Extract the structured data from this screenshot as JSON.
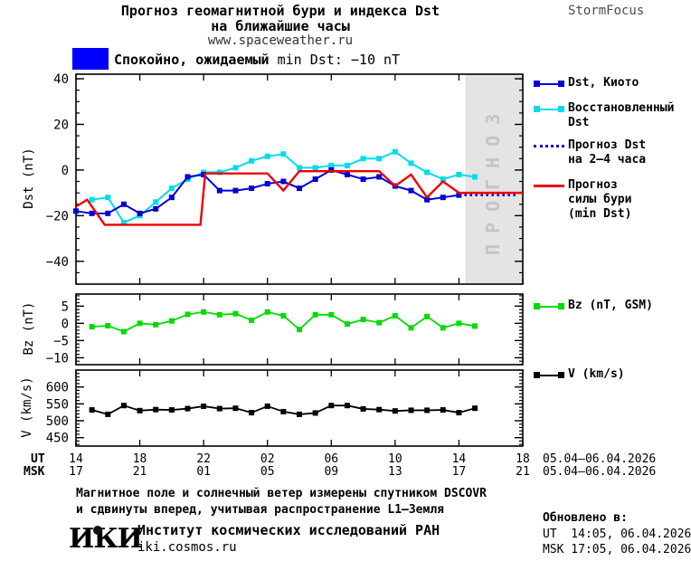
{
  "header": {
    "title_line1": "Прогноз геомагнитной бури и индекса Dst",
    "title_line2": "на ближайшие часы",
    "site": "www.spaceweather.ru",
    "brand": "StormFocus"
  },
  "banner": {
    "swatch_color": "#0000ff",
    "bold": "Спокойно, ожидаемый",
    "rest": " min Dst: −10 nT"
  },
  "chart_data": [
    {
      "id": "dst",
      "type": "line",
      "ylabel": "Dst (nT)",
      "ylim": [
        -50,
        42
      ],
      "xlim_hours": [
        0,
        28
      ],
      "yticks": {
        "values": [
          40,
          20,
          0,
          -20,
          -40
        ],
        "labels": [
          "40",
          "20",
          "0",
          "−20",
          "−40"
        ],
        "minor_step": 5
      },
      "xticks_hours": [
        0,
        4,
        8,
        12,
        16,
        20,
        24,
        28
      ],
      "grid": false,
      "legend_position": "right",
      "forecast_band": {
        "x_start_hour": 24.4,
        "fill": "#e4e4e4",
        "label": "ПРОГНОЗ",
        "text_color": "#c4c4c4"
      },
      "series": [
        {
          "name": "Восстановленный Dst",
          "color": "#00dcec",
          "lw": 2,
          "marker": true,
          "x": [
            1,
            2,
            3,
            4,
            5,
            6,
            7,
            8,
            9,
            10,
            11,
            12,
            13,
            14,
            15,
            16,
            17,
            18,
            19,
            20,
            21,
            22,
            23,
            24,
            25
          ],
          "y": [
            -13,
            -12,
            -23,
            -20,
            -14,
            -8,
            -4,
            -1,
            -1,
            1,
            4,
            6,
            7,
            1,
            1,
            2,
            2,
            5,
            5,
            8,
            3,
            -1,
            -4,
            -2,
            -3
          ]
        },
        {
          "name": "Dst, Киото",
          "color": "#0000d6",
          "lw": 2,
          "marker": true,
          "x": [
            0,
            1,
            2,
            3,
            4,
            5,
            6,
            7,
            8,
            9,
            10,
            11,
            12,
            13,
            14,
            15,
            16,
            17,
            18,
            19,
            20,
            21,
            22,
            23,
            24
          ],
          "y": [
            -18,
            -19,
            -19,
            -15,
            -19,
            -17,
            -12,
            -3,
            -2,
            -9,
            -9,
            -8,
            -6,
            -5,
            -8,
            -4,
            0,
            -2,
            -4,
            -3,
            -7,
            -9,
            -13,
            -12,
            -11
          ]
        },
        {
          "name": "Прогноз Dst на 2–4 часа",
          "color": "#0000cc",
          "lw": 2.5,
          "style": "dotted",
          "marker": false,
          "x": [
            24,
            27.6
          ],
          "y": [
            -11,
            -11
          ]
        },
        {
          "name": "Прогноз силы бури (min Dst)",
          "color": "#ee0000",
          "lw": 2.4,
          "marker": false,
          "x": [
            0,
            0.7,
            1.8,
            7.8,
            8.1,
            12,
            13,
            14,
            19,
            20,
            21,
            22,
            23,
            24,
            28
          ],
          "y": [
            -16,
            -13,
            -24,
            -24,
            -1.5,
            -1.5,
            -9,
            -0.5,
            -0.5,
            -7,
            -2,
            -12,
            -5,
            -10,
            -10
          ]
        }
      ]
    },
    {
      "id": "bz",
      "type": "line",
      "ylabel": "Bz (nT)",
      "ylim": [
        -12,
        8.5
      ],
      "xlim_hours": [
        0,
        28
      ],
      "yticks": {
        "values": [
          5,
          0,
          -5,
          -10
        ],
        "labels": [
          "5",
          "0",
          "−5",
          "−10"
        ],
        "minor_step": 1
      },
      "xticks_hours": [
        0,
        4,
        8,
        12,
        16,
        20,
        24,
        28
      ],
      "grid": false,
      "series": [
        {
          "name": "Bz (nT, GSM)",
          "color": "#00db00",
          "lw": 1.8,
          "marker": true,
          "x": [
            1,
            2,
            3,
            4,
            5,
            6,
            7,
            8,
            9,
            10,
            11,
            12,
            13,
            14,
            15,
            16,
            17,
            18,
            19,
            20,
            21,
            22,
            23,
            24,
            25
          ],
          "y": [
            -1,
            -0.7,
            -2.4,
            0,
            -0.4,
            0.7,
            2.6,
            3.3,
            2.5,
            2.8,
            0.9,
            3.3,
            2.2,
            -1.8,
            2.5,
            2.5,
            -0.2,
            1.1,
            0.2,
            2.2,
            -1.3,
            2.0,
            -1.3,
            0,
            -0.8
          ]
        }
      ]
    },
    {
      "id": "v",
      "type": "line",
      "ylabel": "V (km/s)",
      "ylim": [
        425,
        650
      ],
      "xlim_hours": [
        0,
        28
      ],
      "yticks": {
        "values": [
          600,
          550,
          500,
          450
        ],
        "labels": [
          "600",
          "550",
          "500",
          "450"
        ],
        "minor_step": 10
      },
      "xticks_hours": [
        0,
        4,
        8,
        12,
        16,
        20,
        24,
        28
      ],
      "grid": false,
      "series": [
        {
          "name": "V (km/s)",
          "color": "#000000",
          "lw": 1.8,
          "marker": true,
          "x": [
            1,
            2,
            3,
            4,
            5,
            6,
            7,
            8,
            9,
            10,
            11,
            12,
            13,
            14,
            15,
            16,
            17,
            18,
            19,
            20,
            21,
            22,
            23,
            24,
            25
          ],
          "y": [
            532,
            519,
            545,
            530,
            533,
            532,
            536,
            543,
            536,
            537,
            524,
            543,
            527,
            519,
            523,
            545,
            545,
            535,
            533,
            529,
            531,
            531,
            532,
            524,
            537
          ]
        }
      ]
    }
  ],
  "legend": {
    "main": [
      {
        "lines": [
          "Dst, Киото"
        ]
      },
      {
        "lines": [
          "Восстановленный",
          "Dst"
        ]
      },
      {
        "lines": [
          "Прогноз Dst",
          "на 2–4 часа"
        ]
      },
      {
        "lines": [
          "Прогноз",
          "силы бури",
          "(min Dst)"
        ]
      }
    ],
    "bz": {
      "label": "Bz (nT, GSM)"
    },
    "v": {
      "label": "V (km/s)"
    }
  },
  "axis": {
    "ut_head": "UT",
    "msk_head": "MSK",
    "ut_labels": [
      "14",
      "18",
      "22",
      "02",
      "06",
      "10",
      "14",
      "18"
    ],
    "msk_labels": [
      "17",
      "21",
      "01",
      "05",
      "09",
      "13",
      "17",
      "21"
    ],
    "date_ut": "05.04–06.04.2026",
    "date_msk": "05.04–06.04.2026"
  },
  "footer": {
    "line1": "Магнитное поле и солнечный ветер измерены спутником DSCOVR",
    "line2": "и сдвинуты вперед, учитывая распространение L1–Земля"
  },
  "org": {
    "logo": "ИКИ",
    "name": "Институт космических исследований РАН",
    "site": "iki.cosmos.ru"
  },
  "updated": {
    "head": "Обновлено в:",
    "ut": "UT  14:05, 06.04.2026",
    "msk": "MSK 17:05, 06.04.2026"
  }
}
